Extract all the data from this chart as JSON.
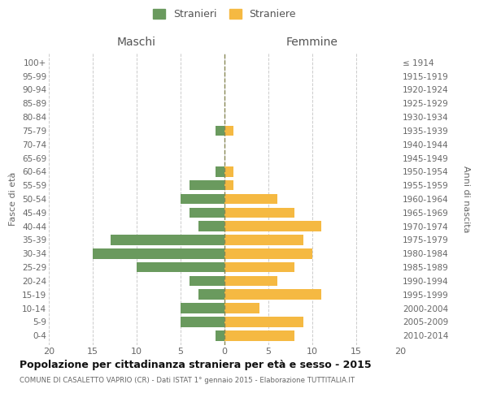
{
  "age_groups": [
    "0-4",
    "5-9",
    "10-14",
    "15-19",
    "20-24",
    "25-29",
    "30-34",
    "35-39",
    "40-44",
    "45-49",
    "50-54",
    "55-59",
    "60-64",
    "65-69",
    "70-74",
    "75-79",
    "80-84",
    "85-89",
    "90-94",
    "95-99",
    "100+"
  ],
  "birth_years": [
    "2010-2014",
    "2005-2009",
    "2000-2004",
    "1995-1999",
    "1990-1994",
    "1985-1989",
    "1980-1984",
    "1975-1979",
    "1970-1974",
    "1965-1969",
    "1960-1964",
    "1955-1959",
    "1950-1954",
    "1945-1949",
    "1940-1944",
    "1935-1939",
    "1930-1934",
    "1925-1929",
    "1920-1924",
    "1915-1919",
    "≤ 1914"
  ],
  "maschi": [
    1,
    5,
    5,
    3,
    4,
    10,
    15,
    13,
    3,
    4,
    5,
    4,
    1,
    0,
    0,
    1,
    0,
    0,
    0,
    0,
    0
  ],
  "femmine": [
    8,
    9,
    4,
    11,
    6,
    8,
    10,
    9,
    11,
    8,
    6,
    1,
    1,
    0,
    0,
    1,
    0,
    0,
    0,
    0,
    0
  ],
  "color_maschi": "#6a9a5e",
  "color_femmine": "#f5b942",
  "title": "Popolazione per cittadinanza straniera per età e sesso - 2015",
  "subtitle": "COMUNE DI CASALETTO VAPRIO (CR) - Dati ISTAT 1° gennaio 2015 - Elaborazione TUTTITALIA.IT",
  "ylabel_left": "Fasce di età",
  "ylabel_right": "Anni di nascita",
  "xlabel_maschi": "Maschi",
  "xlabel_femmine": "Femmine",
  "legend_maschi": "Stranieri",
  "legend_femmine": "Straniere",
  "xlim": 20,
  "background_color": "#ffffff",
  "grid_color": "#cccccc"
}
